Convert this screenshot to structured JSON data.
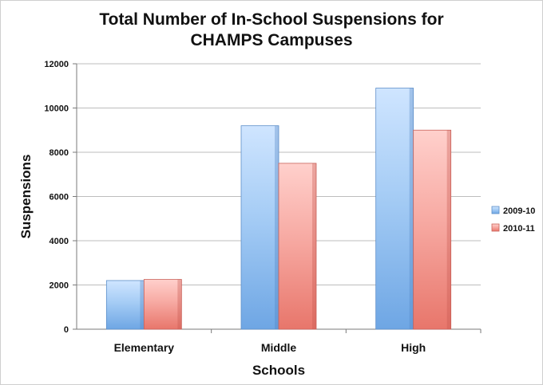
{
  "chart_data": {
    "type": "bar",
    "title": "Total Number of In-School Suspensions for CHAMPS Campuses",
    "title_lines": [
      "Total Number of In-School Suspensions for",
      "CHAMPS Campuses"
    ],
    "xlabel": "Schools",
    "ylabel": "Suspensions",
    "categories": [
      "Elementary",
      "Middle",
      "High"
    ],
    "series": [
      {
        "name": "2009-10",
        "values": [
          2200,
          9200,
          10900
        ],
        "color": "#86b9ee"
      },
      {
        "name": "2010-11",
        "values": [
          2250,
          7500,
          9000
        ],
        "color": "#ef8b82"
      }
    ],
    "ylim": [
      0,
      12000
    ],
    "yticks": [
      0,
      2000,
      4000,
      6000,
      8000,
      10000,
      12000
    ],
    "grid": true,
    "legend": "right"
  }
}
